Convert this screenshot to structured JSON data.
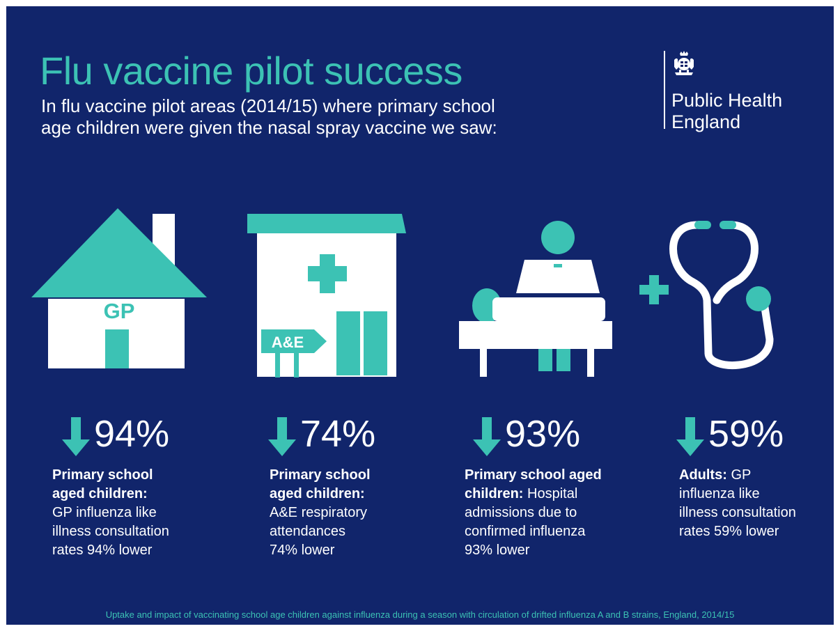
{
  "header": {
    "title": "Flu vaccine pilot success",
    "subtitle_lines": [
      "In flu vaccine pilot areas (2014/15) where primary school",
      "age children were given the nasal spray vaccine we saw:"
    ]
  },
  "logo": {
    "name_lines": [
      "Public Health",
      "England"
    ],
    "crest_icon": "royal-crest-icon"
  },
  "icons": {
    "house_sign": "GP",
    "hospital_sign": "A&E"
  },
  "stats": [
    {
      "value": "94%",
      "arrow_icon": "arrow-down-icon",
      "lines": [
        {
          "text": "Primary school",
          "bold": "Primary school"
        },
        {
          "text": "aged children:",
          "bold": "aged children:"
        },
        {
          "text": "GP influenza like",
          "bold": ""
        },
        {
          "text": "illness consultation",
          "bold": ""
        },
        {
          "text": "rates 94% lower",
          "bold": ""
        }
      ]
    },
    {
      "value": "74%",
      "arrow_icon": "arrow-down-icon",
      "lines": [
        {
          "text": "Primary school",
          "bold": "Primary school"
        },
        {
          "text": "aged children:",
          "bold": "aged children:"
        },
        {
          "text": "A&E respiratory",
          "bold": ""
        },
        {
          "text": "attendances",
          "bold": ""
        },
        {
          "text": "74% lower",
          "bold": ""
        }
      ]
    },
    {
      "value": "93%",
      "arrow_icon": "arrow-down-icon",
      "lines": [
        {
          "text": "Primary school aged",
          "bold": "Primary school aged"
        },
        {
          "text": "children: Hospital",
          "bold": "children:",
          "rest": " Hospital"
        },
        {
          "text": "admissions due to",
          "bold": ""
        },
        {
          "text": "confirmed influenza",
          "bold": ""
        },
        {
          "text": "93% lower",
          "bold": ""
        }
      ]
    },
    {
      "value": "59%",
      "arrow_icon": "arrow-down-icon",
      "lines": [
        {
          "text": "Adults: GP",
          "bold": "Adults:",
          "rest": " GP"
        },
        {
          "text": "influenza like",
          "bold": ""
        },
        {
          "text": "illness consultation",
          "bold": ""
        },
        {
          "text": "rates 59% lower",
          "bold": ""
        }
      ]
    }
  ],
  "footnote": "Uptake and impact of vaccinating school age children against influenza during a season with circulation of drifted influenza A and B strains, England, 2014/15",
  "colors": {
    "background": "#11256b",
    "accent": "#3cc2b4",
    "text": "#ffffff"
  }
}
